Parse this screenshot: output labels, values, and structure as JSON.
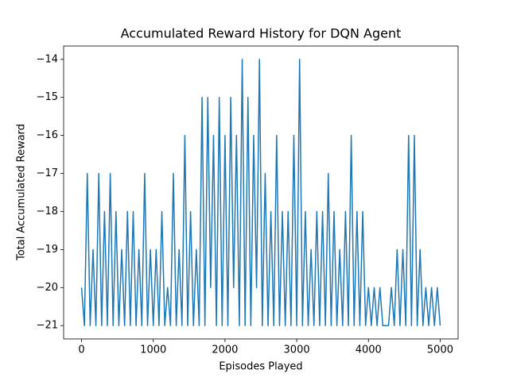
{
  "chart_data": {
    "type": "line",
    "title": "Accumulated Reward History for DQN Agent",
    "x_label": "Episodes Played",
    "y_label": "Total Accumulated Reward",
    "xlim": [
      -250,
      5250
    ],
    "xticks": [
      0,
      1000,
      2000,
      3000,
      4000,
      5000
    ],
    "ylim": [
      -21.35,
      -13.65
    ],
    "yticks": [
      {
        "value": -21,
        "label": "−21"
      },
      {
        "value": -20,
        "label": "−20"
      },
      {
        "value": -19,
        "label": "−19"
      },
      {
        "value": -18,
        "label": "−18"
      },
      {
        "value": -17,
        "label": "−17"
      },
      {
        "value": -16,
        "label": "−16"
      },
      {
        "value": -15,
        "label": "−15"
      },
      {
        "value": -14,
        "label": "−14"
      }
    ],
    "grid": false,
    "series": [
      {
        "color": "#1f77b4",
        "x": [
          0,
          40,
          80,
          120,
          160,
          200,
          240,
          280,
          320,
          360,
          400,
          440,
          480,
          520,
          560,
          600,
          640,
          680,
          720,
          760,
          800,
          840,
          880,
          920,
          960,
          1000,
          1040,
          1080,
          1120,
          1160,
          1200,
          1240,
          1280,
          1320,
          1360,
          1400,
          1440,
          1480,
          1520,
          1560,
          1600,
          1640,
          1680,
          1720,
          1760,
          1800,
          1840,
          1880,
          1920,
          1960,
          2000,
          2040,
          2080,
          2120,
          2160,
          2200,
          2240,
          2280,
          2320,
          2360,
          2400,
          2440,
          2480,
          2520,
          2560,
          2600,
          2640,
          2680,
          2720,
          2760,
          2800,
          2840,
          2880,
          2920,
          2960,
          3000,
          3040,
          3080,
          3120,
          3160,
          3200,
          3240,
          3280,
          3320,
          3360,
          3400,
          3440,
          3480,
          3520,
          3560,
          3600,
          3640,
          3680,
          3720,
          3760,
          3800,
          3840,
          3880,
          3920,
          3960,
          4000,
          4040,
          4080,
          4120,
          4160,
          4200,
          4240,
          4280,
          4320,
          4360,
          4400,
          4440,
          4480,
          4520,
          4560,
          4600,
          4640,
          4680,
          4720,
          4760,
          4800,
          4840,
          4880,
          4920,
          4960,
          5000
        ],
        "values": [
          -20,
          -21,
          -17,
          -21,
          -19,
          -21,
          -17,
          -21,
          -18,
          -21,
          -17,
          -21,
          -18,
          -21,
          -19,
          -21,
          -18,
          -21,
          -18,
          -21,
          -19,
          -21,
          -17,
          -21,
          -19,
          -21,
          -19,
          -21,
          -18,
          -21,
          -20,
          -21,
          -17,
          -21,
          -19,
          -21,
          -16,
          -21,
          -18,
          -21,
          -19,
          -21,
          -15,
          -21,
          -15,
          -20,
          -16,
          -21,
          -15,
          -21,
          -16,
          -21,
          -15,
          -20,
          -16,
          -21,
          -14,
          -21,
          -15,
          -21,
          -16,
          -20,
          -14,
          -21,
          -17,
          -21,
          -18,
          -21,
          -16,
          -21,
          -18,
          -21,
          -18,
          -21,
          -16,
          -21,
          -14,
          -21,
          -18,
          -21,
          -19,
          -21,
          -18,
          -21,
          -18,
          -21,
          -17,
          -21,
          -18,
          -21,
          -19,
          -21,
          -18,
          -21,
          -16,
          -21,
          -18,
          -21,
          -18,
          -21,
          -20,
          -21,
          -20,
          -21,
          -20,
          -21,
          -21,
          -21,
          -20,
          -21,
          -19,
          -21,
          -19,
          -21,
          -16,
          -21,
          -16,
          -21,
          -19,
          -21,
          -20,
          -21,
          -20,
          -21,
          -20,
          -21
        ]
      }
    ]
  }
}
